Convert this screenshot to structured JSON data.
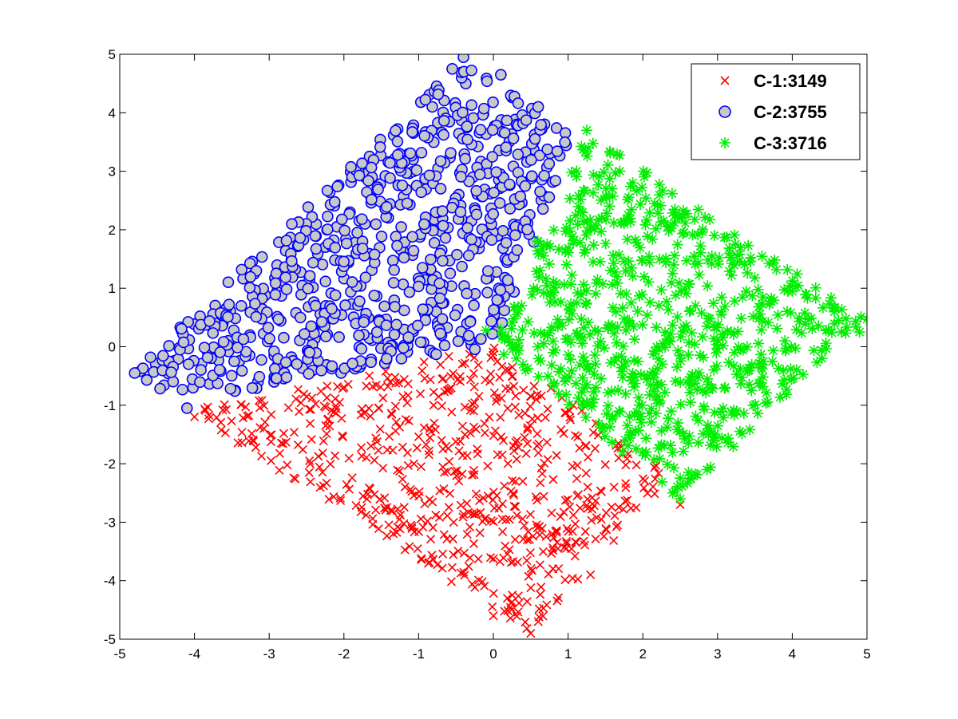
{
  "chart_data": {
    "type": "scatter",
    "title": "",
    "xlabel": "",
    "ylabel": "",
    "xlim": [
      -5,
      5
    ],
    "ylim": [
      -5,
      5
    ],
    "xticks": [
      -5,
      -4,
      -3,
      -2,
      -1,
      0,
      1,
      2,
      3,
      4,
      5
    ],
    "yticks": [
      -5,
      -4,
      -3,
      -2,
      -1,
      0,
      1,
      2,
      3,
      4,
      5
    ],
    "grid": false,
    "legend_position": "top-right",
    "series": [
      {
        "name": "C-1:3149",
        "marker": "x",
        "color": "#ff0000",
        "count": 3149,
        "region": [
          [
            -4.1,
            -1.1
          ],
          [
            0.0,
            0.0
          ],
          [
            2.4,
            -2.2
          ],
          [
            0.5,
            -4.9
          ]
        ],
        "sample_points": [
          [
            0.5,
            -4.9
          ],
          [
            -4.0,
            -1.2
          ],
          [
            2.5,
            -2.7
          ],
          [
            -0.8,
            -1.0
          ],
          [
            1.3,
            -3.9
          ],
          [
            0.0,
            -4.6
          ]
        ]
      },
      {
        "name": "C-2:3755",
        "marker": "o",
        "color": "#0000ff",
        "count": 3755,
        "region": [
          [
            -4.8,
            -0.4
          ],
          [
            -4.3,
            -1.0
          ],
          [
            0.0,
            0.0
          ],
          [
            1.1,
            3.6
          ],
          [
            -0.4,
            4.9
          ]
        ],
        "sample_points": [
          [
            -0.4,
            4.95
          ],
          [
            -4.8,
            -0.45
          ],
          [
            0.1,
            4.65
          ],
          [
            0.6,
            4.1
          ],
          [
            -4.1,
            -1.05
          ],
          [
            -0.55,
            4.75
          ]
        ]
      },
      {
        "name": "C-3:3716",
        "marker": "*",
        "color": "#00ee00",
        "count": 3716,
        "region": [
          [
            0.0,
            0.0
          ],
          [
            1.2,
            3.7
          ],
          [
            5.0,
            0.5
          ],
          [
            2.5,
            -2.6
          ]
        ],
        "sample_points": [
          [
            5.0,
            0.47
          ],
          [
            1.25,
            3.7
          ],
          [
            2.5,
            -2.6
          ],
          [
            -0.1,
            0.28
          ],
          [
            4.9,
            0.25
          ],
          [
            2.4,
            -2.5
          ]
        ]
      }
    ]
  }
}
